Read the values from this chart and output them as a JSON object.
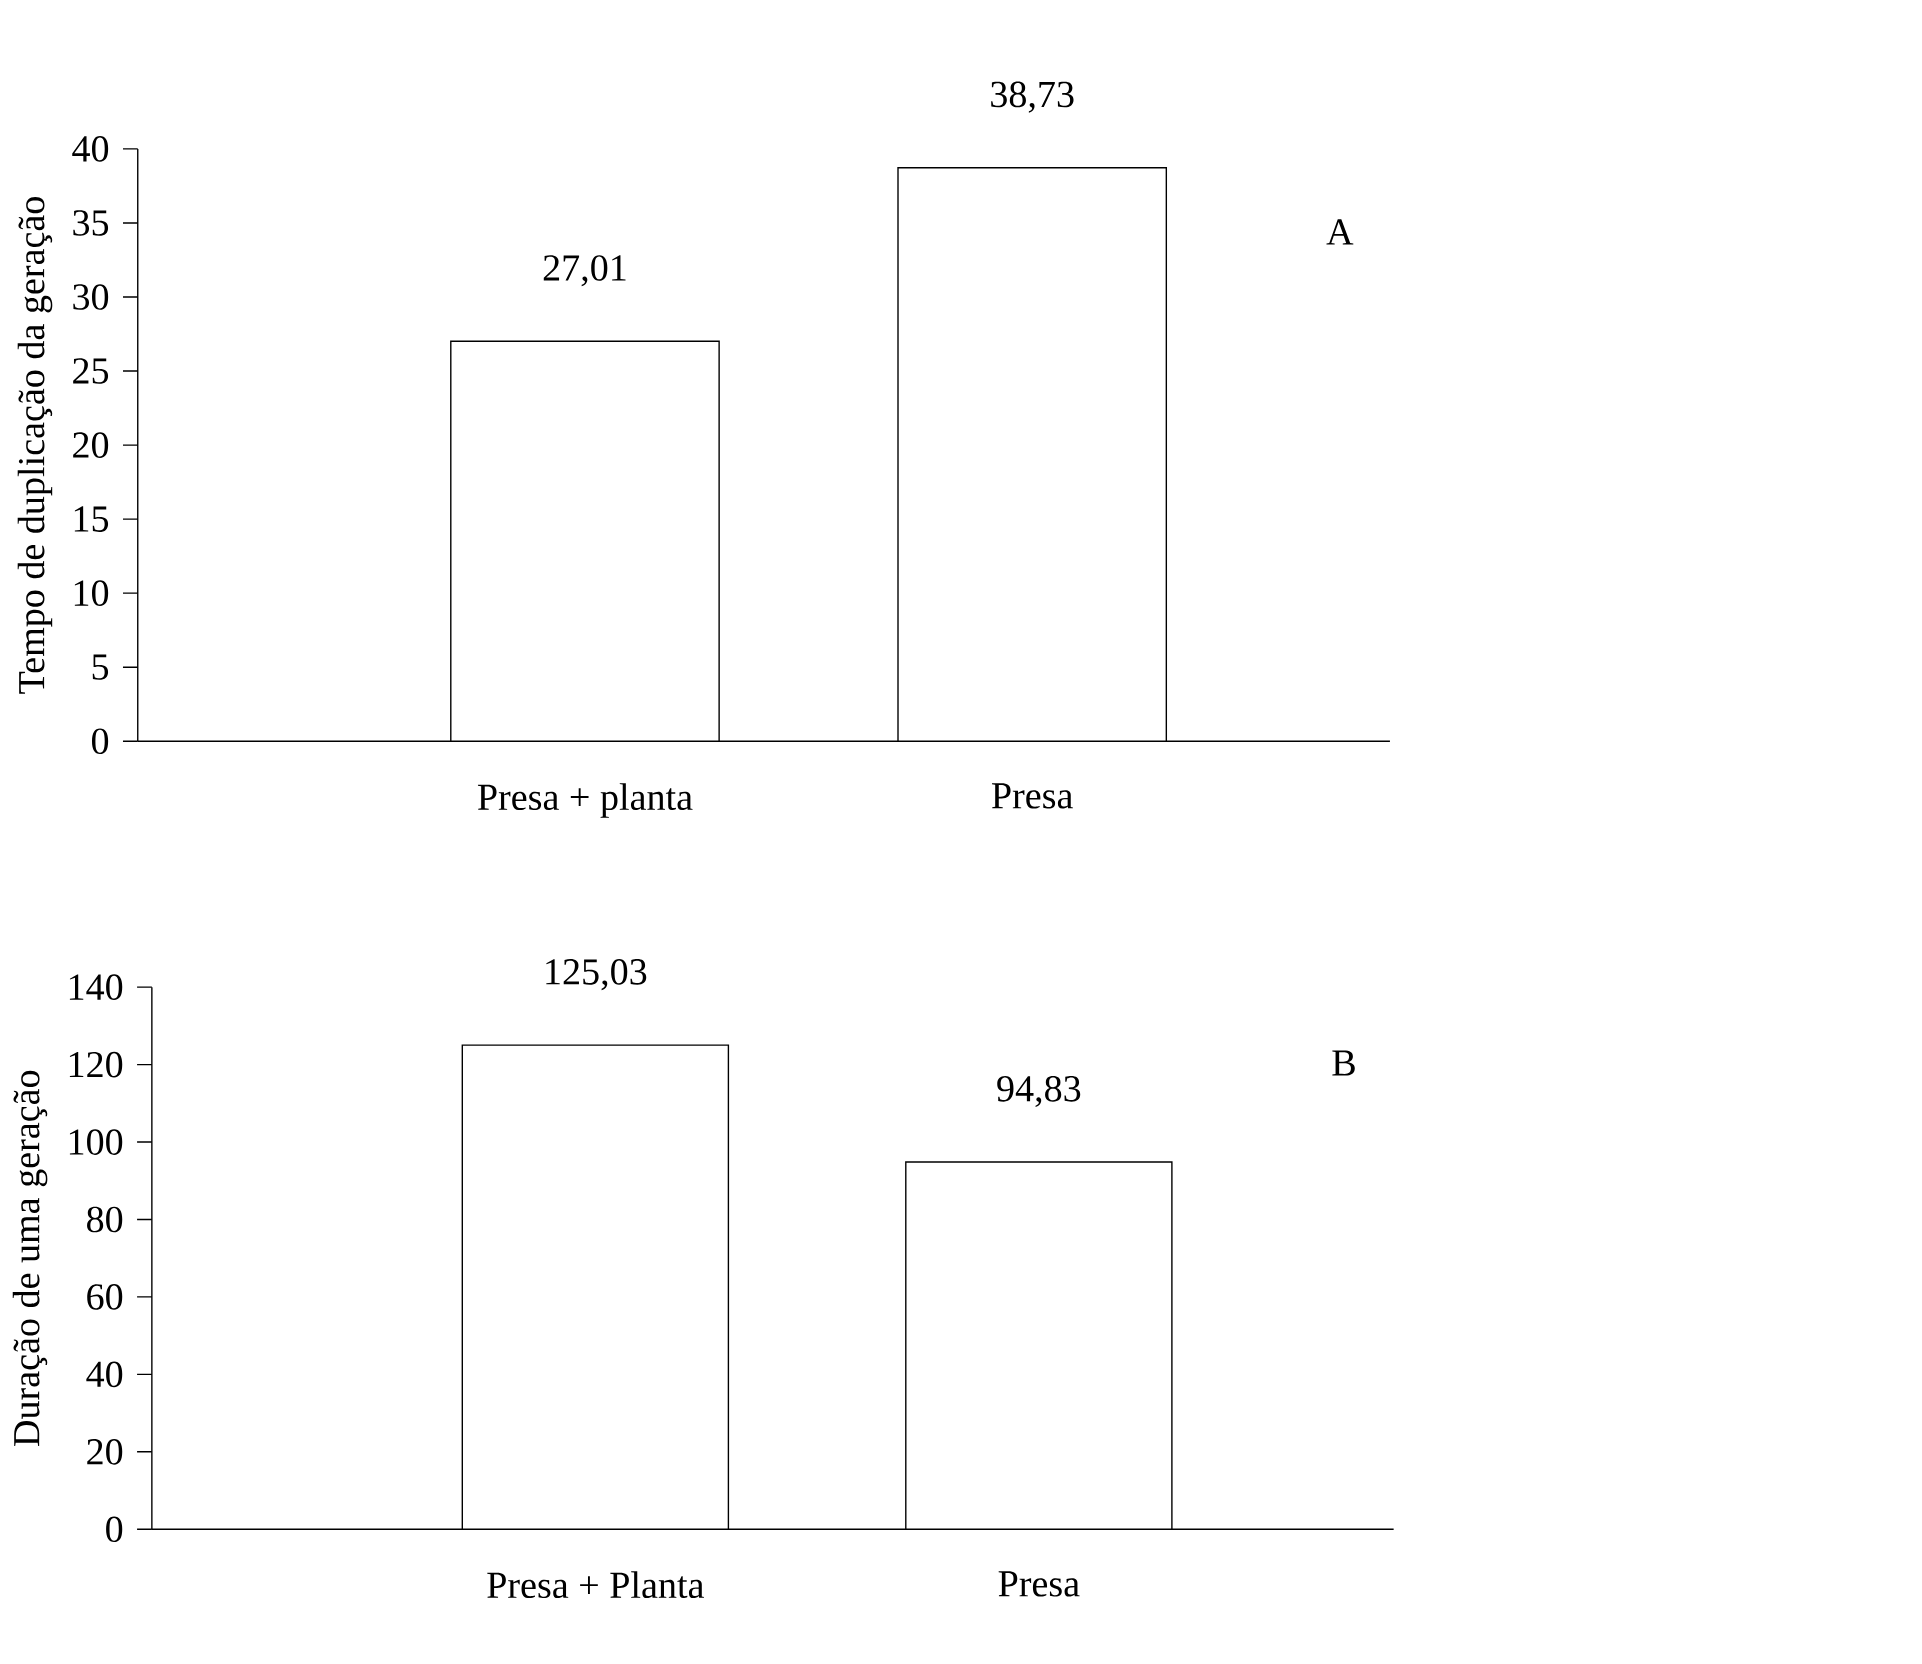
{
  "chart_data": [
    {
      "type": "bar",
      "categories": [
        "Presa + planta",
        "Presa"
      ],
      "values": [
        27.01,
        38.73
      ],
      "value_labels": [
        "27,01",
        "38,73"
      ],
      "color": "#ffffff",
      "ylabel": "Tempo de duplicação da geração",
      "ylim": [
        0,
        40
      ],
      "yticks": [
        0,
        5,
        10,
        15,
        20,
        25,
        30,
        35,
        40
      ],
      "annotations": [
        "A"
      ]
    },
    {
      "type": "bar",
      "categories": [
        "Presa + Planta",
        "Presa"
      ],
      "values": [
        125.03,
        94.83
      ],
      "value_labels": [
        "125,03",
        "94,83"
      ],
      "color": "#ffffff",
      "ylabel": "Duração de uma geração",
      "ylim": [
        0,
        140
      ],
      "yticks": [
        0,
        20,
        40,
        60,
        80,
        100,
        120,
        140
      ],
      "annotations": [
        "B"
      ]
    }
  ]
}
